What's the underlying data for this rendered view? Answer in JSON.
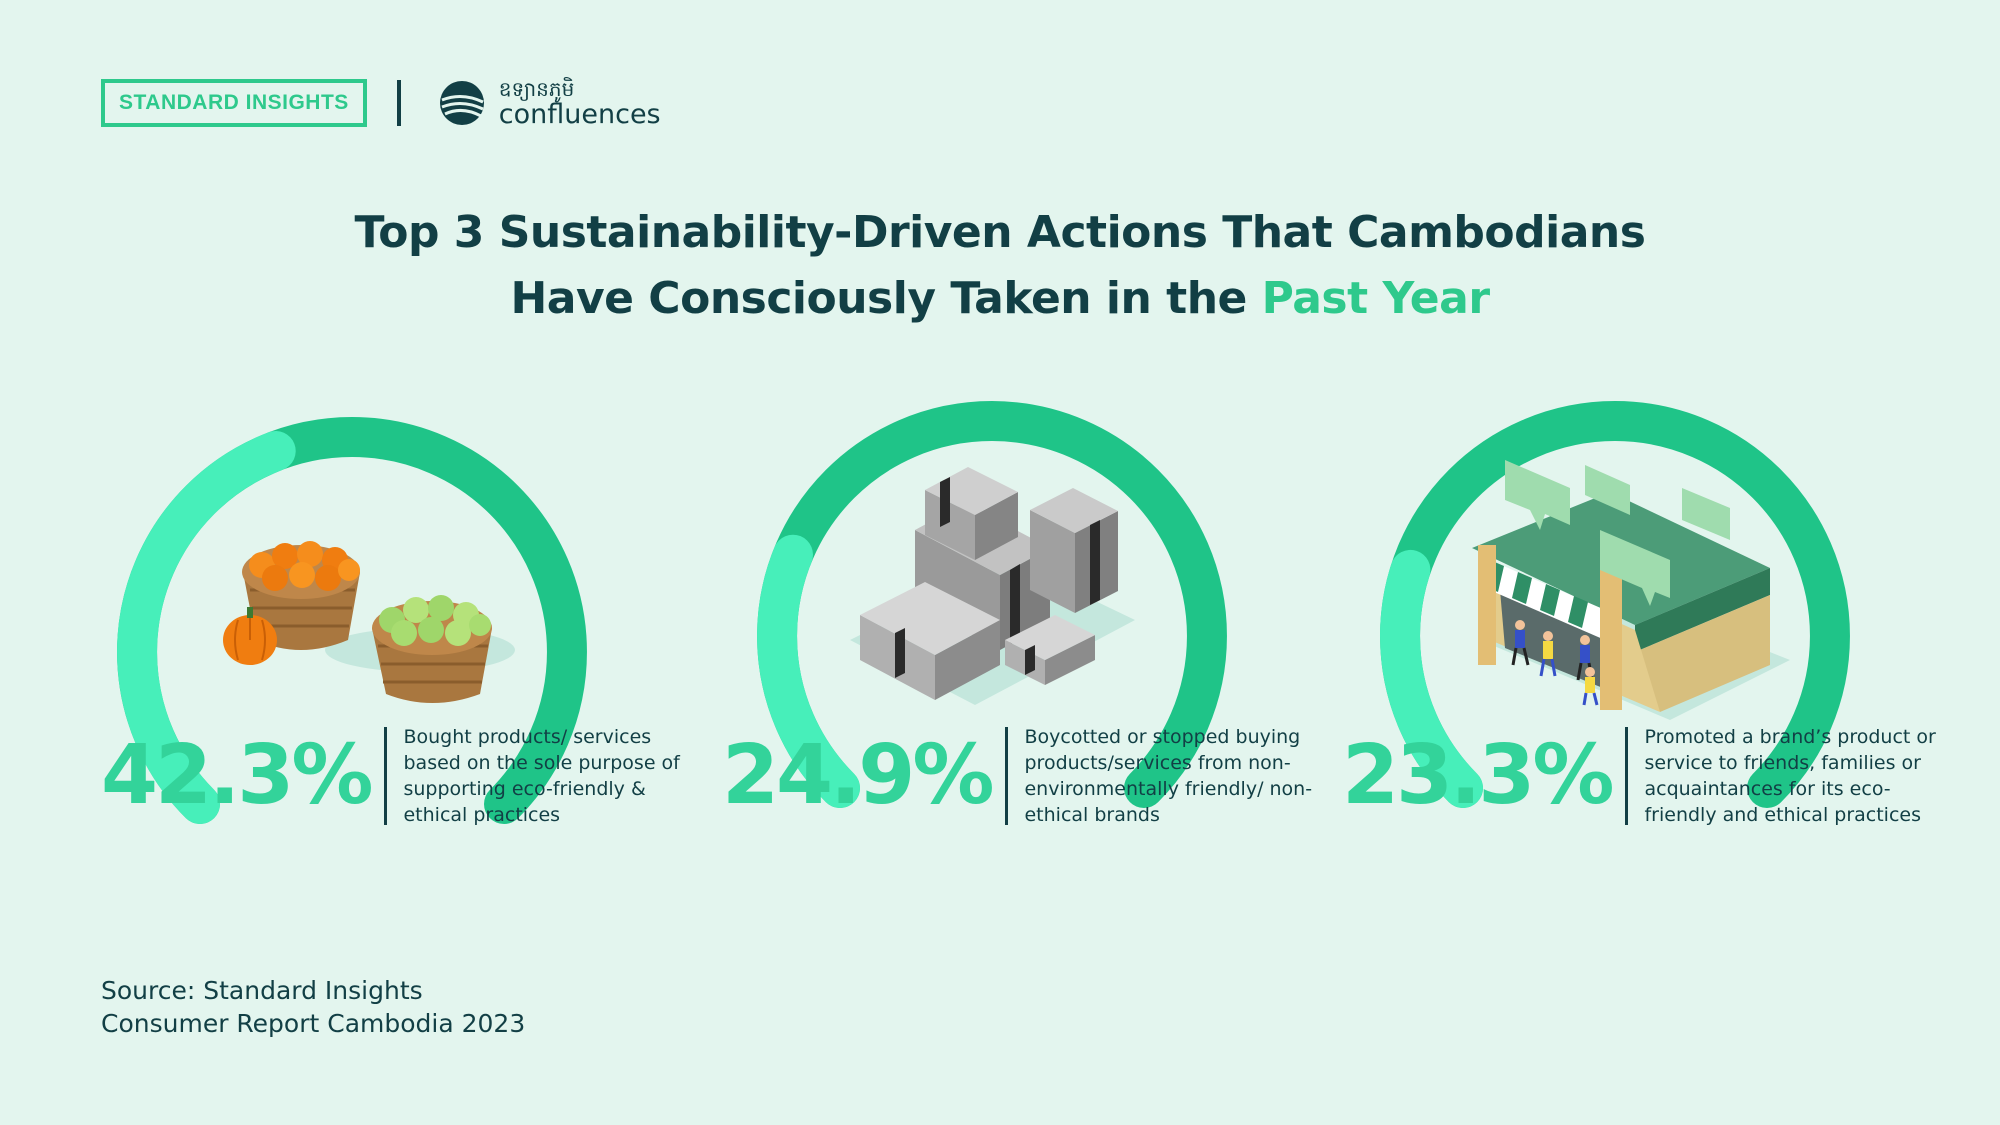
{
  "header": {
    "brand": "STANDARD INSIGHTS",
    "partner_khmer": "ឧទ្យានភូមិ",
    "partner_name": "confluences"
  },
  "title": {
    "line1": "Top 3 Sustainability-Driven Actions That Cambodians",
    "line2_prefix": "Have Consciously Taken in the ",
    "line2_highlight": "Past Year"
  },
  "colors": {
    "background": "#e3f5ee",
    "accent": "#2ec98c",
    "gauge_track": "#1fc488",
    "gauge_fill": "#47efba",
    "text": "#123f45"
  },
  "chart_data": {
    "type": "gauge",
    "unit": "%",
    "max": 100,
    "items": [
      {
        "value": 42.3,
        "label": "42.3%",
        "description": "Bought products/ services based on the sole purpose of supporting eco-friendly & ethical practices",
        "icon": "produce-baskets-icon"
      },
      {
        "value": 24.9,
        "label": "24.9%",
        "description": "Boycotted or stopped buying products/services from non-environmentally friendly/ non-ethical brands",
        "icon": "boxes-icon"
      },
      {
        "value": 23.3,
        "label": "23.3%",
        "description": "Promoted a brand’s product or service to friends, families or acquaintances for its eco-friendly and ethical practices",
        "icon": "storefront-icon"
      }
    ]
  },
  "footer": {
    "source_line1": "Source: Standard Insights",
    "source_line2": "Consumer Report Cambodia 2023"
  }
}
